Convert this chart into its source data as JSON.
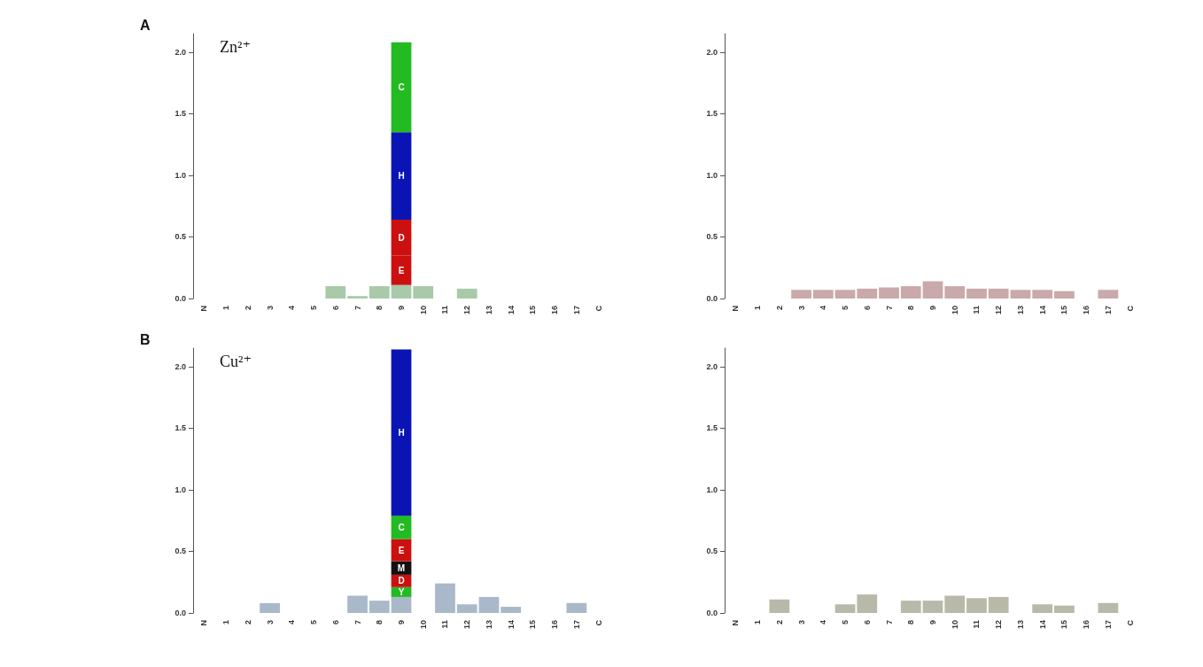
{
  "chart_data": [
    {
      "type": "bar",
      "stacked": true,
      "annotations": [
        "A",
        "Zn²⁺"
      ],
      "categories": [
        "N",
        "1",
        "2",
        "3",
        "4",
        "5",
        "6",
        "7",
        "8",
        "9",
        "10",
        "11",
        "12",
        "13",
        "14",
        "15",
        "16",
        "17",
        "C"
      ],
      "ylim": [
        0,
        2.15
      ],
      "yticks": [
        {
          "value": 0,
          "label": "0.0"
        },
        {
          "value": 0.5,
          "label": "0.5"
        },
        {
          "value": 1,
          "label": "1.0"
        },
        {
          "value": 1.5,
          "label": "1.5"
        },
        {
          "value": 2,
          "label": "2.0"
        }
      ],
      "grid": false,
      "legend": false,
      "series": [
        {
          "color": "#a9c9a9",
          "values": [
            null,
            0,
            0,
            0,
            0,
            0,
            0.1,
            0.02,
            0.1,
            0.11,
            0.1,
            0,
            0.08,
            0,
            0,
            0,
            0,
            0,
            null
          ]
        },
        {
          "name": "E",
          "color": "#cc1010",
          "values": [
            null,
            0,
            0,
            0,
            0,
            0,
            0,
            0,
            0,
            0.24,
            0,
            0,
            0,
            0,
            0,
            0,
            0,
            0,
            null
          ]
        },
        {
          "name": "D",
          "color": "#cc1010",
          "values": [
            null,
            0,
            0,
            0,
            0,
            0,
            0,
            0,
            0,
            0.29,
            0,
            0,
            0,
            0,
            0,
            0,
            0,
            0,
            null
          ]
        },
        {
          "name": "H",
          "color": "#0a14b4",
          "values": [
            null,
            0,
            0,
            0,
            0,
            0,
            0,
            0,
            0,
            0.71,
            0,
            0,
            0,
            0,
            0,
            0,
            0,
            0,
            null
          ]
        },
        {
          "name": "C",
          "color": "#22bb22",
          "values": [
            null,
            0,
            0,
            0,
            0,
            0,
            0,
            0,
            0,
            0.73,
            0,
            0,
            0,
            0,
            0,
            0,
            0,
            0,
            null
          ]
        }
      ]
    },
    {
      "type": "bar",
      "stacked": true,
      "categories": [
        "N",
        "1",
        "2",
        "3",
        "4",
        "5",
        "6",
        "7",
        "8",
        "9",
        "10",
        "11",
        "12",
        "13",
        "14",
        "15",
        "16",
        "17",
        "C"
      ],
      "ylim": [
        0,
        2.15
      ],
      "yticks": [
        {
          "value": 0,
          "label": "0.0"
        },
        {
          "value": 0.5,
          "label": "0.5"
        },
        {
          "value": 1,
          "label": "1.0"
        },
        {
          "value": 1.5,
          "label": "1.5"
        },
        {
          "value": 2,
          "label": "2.0"
        }
      ],
      "grid": false,
      "legend": false,
      "series": [
        {
          "color": "#c9a9a9",
          "values": [
            null,
            0,
            0,
            0.07,
            0.07,
            0.07,
            0.08,
            0.09,
            0.1,
            0.14,
            0.1,
            0.08,
            0.08,
            0.07,
            0.07,
            0.06,
            0,
            0.07,
            null
          ]
        }
      ]
    },
    {
      "type": "bar",
      "stacked": true,
      "annotations": [
        "B",
        "Cu²⁺"
      ],
      "categories": [
        "N",
        "1",
        "2",
        "3",
        "4",
        "5",
        "6",
        "7",
        "8",
        "9",
        "10",
        "11",
        "12",
        "13",
        "14",
        "15",
        "16",
        "17",
        "C"
      ],
      "ylim": [
        0,
        2.15
      ],
      "yticks": [
        {
          "value": 0,
          "label": "0.0"
        },
        {
          "value": 0.5,
          "label": "0.5"
        },
        {
          "value": 1,
          "label": "1.0"
        },
        {
          "value": 1.5,
          "label": "1.5"
        },
        {
          "value": 2,
          "label": "2.0"
        }
      ],
      "grid": false,
      "legend": false,
      "series": [
        {
          "color": "#a9b9c9",
          "values": [
            null,
            0,
            0,
            0.08,
            0,
            0,
            0,
            0.14,
            0.1,
            0.13,
            0,
            0.24,
            0.07,
            0.13,
            0.05,
            0,
            0,
            0.08,
            null
          ]
        },
        {
          "name": "Y",
          "color": "#22bb22",
          "values": [
            null,
            0,
            0,
            0,
            0,
            0,
            0,
            0,
            0,
            0.08,
            0,
            0,
            0,
            0,
            0,
            0,
            0,
            0,
            null
          ]
        },
        {
          "name": "D",
          "color": "#cc1010",
          "values": [
            null,
            0,
            0,
            0,
            0,
            0,
            0,
            0,
            0,
            0.1,
            0,
            0,
            0,
            0,
            0,
            0,
            0,
            0,
            null
          ]
        },
        {
          "name": "M",
          "color": "#111111",
          "values": [
            null,
            0,
            0,
            0,
            0,
            0,
            0,
            0,
            0,
            0.11,
            0,
            0,
            0,
            0,
            0,
            0,
            0,
            0,
            null
          ]
        },
        {
          "name": "E",
          "color": "#cc1010",
          "values": [
            null,
            0,
            0,
            0,
            0,
            0,
            0,
            0,
            0,
            0.18,
            0,
            0,
            0,
            0,
            0,
            0,
            0,
            0,
            null
          ]
        },
        {
          "name": "C",
          "color": "#22bb22",
          "values": [
            null,
            0,
            0,
            0,
            0,
            0,
            0,
            0,
            0,
            0.19,
            0,
            0,
            0,
            0,
            0,
            0,
            0,
            0,
            null
          ]
        },
        {
          "name": "H",
          "color": "#0a14b4",
          "values": [
            null,
            0,
            0,
            0,
            0,
            0,
            0,
            0,
            0,
            1.35,
            0,
            0,
            0,
            0,
            0,
            0,
            0,
            0,
            null
          ]
        }
      ]
    },
    {
      "type": "bar",
      "stacked": true,
      "categories": [
        "N",
        "1",
        "2",
        "3",
        "4",
        "5",
        "6",
        "7",
        "8",
        "9",
        "10",
        "11",
        "12",
        "13",
        "14",
        "15",
        "16",
        "17",
        "C"
      ],
      "ylim": [
        0,
        2.15
      ],
      "yticks": [
        {
          "value": 0,
          "label": "0.0"
        },
        {
          "value": 0.5,
          "label": "0.5"
        },
        {
          "value": 1,
          "label": "1.0"
        },
        {
          "value": 1.5,
          "label": "1.5"
        },
        {
          "value": 2,
          "label": "2.0"
        }
      ],
      "grid": false,
      "legend": false,
      "series": [
        {
          "color": "#b9b9a9",
          "values": [
            null,
            0,
            0.11,
            0,
            0,
            0.07,
            0.15,
            0,
            0.1,
            0.1,
            0.14,
            0.12,
            0.13,
            0,
            0.07,
            0.06,
            0,
            0.08,
            null
          ]
        }
      ]
    }
  ]
}
